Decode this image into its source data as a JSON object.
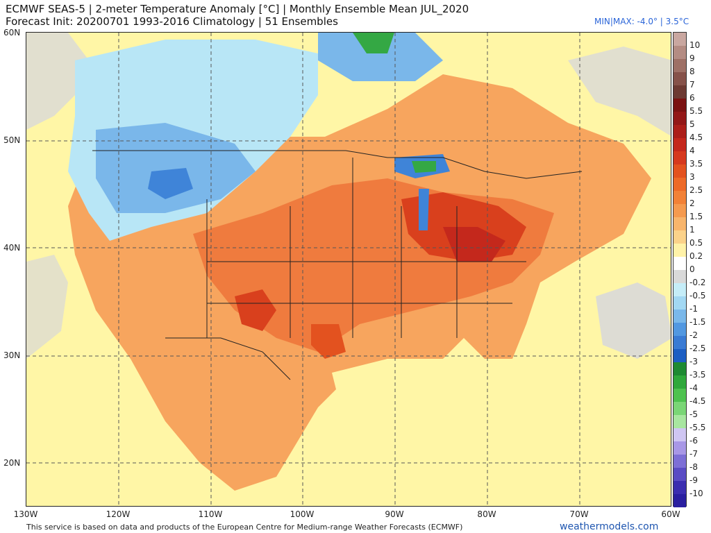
{
  "header": {
    "title_line1": "ECMWF SEAS-5 | 2-meter Temperature Anomaly [°C] | Monthly Ensemble Mean JUL_2020",
    "title_line2": "Forecast Init: 20200701     1993-2016 Climatology | 51 Ensembles",
    "minmax": "MIN|MAX: -4.0° | 3.5°C"
  },
  "map": {
    "lat_labels": [
      "60N",
      "50N",
      "40N",
      "30N",
      "20N"
    ],
    "lon_labels": [
      "130W",
      "120W",
      "110W",
      "100W",
      "90W",
      "80W",
      "70W",
      "60W"
    ],
    "extent": {
      "lon": [
        -130,
        -60
      ],
      "lat": [
        16,
        60
      ]
    },
    "colors": {
      "ocean_neutral": "#fff6a6",
      "land_warm": "#f7a55e",
      "warm_mid": "#ef7b3e",
      "warm_strong": "#d9401d",
      "cool_light": "#b8e6f6",
      "cool_mid": "#7ab7ea",
      "cool_strong": "#3f84d8",
      "green_anom": "#34a844",
      "neutral_grey": "#d9d9d9",
      "grid": "#555555",
      "border": "#222222"
    },
    "grid_style": "dashed"
  },
  "colorbar": {
    "labels": [
      "10",
      "9",
      "8",
      "7",
      "6",
      "5.5",
      "5",
      "4.5",
      "4",
      "3.5",
      "3",
      "2.5",
      "2",
      "1.5",
      "1",
      "0.5",
      "0.2",
      "0",
      "-0.2",
      "-0.5",
      "-1",
      "-1.5",
      "-2",
      "-2.5",
      "-3",
      "-3.5",
      "-4",
      "-4.5",
      "-5",
      "-5.5",
      "-6",
      "-7",
      "-8",
      "-9",
      "-10"
    ],
    "colors": [
      "#c9a7a0",
      "#b48c83",
      "#9e7066",
      "#86524a",
      "#6d3a33",
      "#7b1212",
      "#931818",
      "#ac1f1a",
      "#c4281c",
      "#d6391e",
      "#e3521f",
      "#ed6a28",
      "#f28137",
      "#f59a4f",
      "#f8b56c",
      "#fbd28a",
      "#fff2a8",
      "#ffffff",
      "#d9d9d9",
      "#c5edf8",
      "#a2d8f3",
      "#7ab8ea",
      "#5298e1",
      "#3a7bd4",
      "#1d5ec3",
      "#1e8a32",
      "#2fa83b",
      "#4ec24f",
      "#7ad676",
      "#a8e6a0",
      "#cfc6f2",
      "#a897e6",
      "#7d6fd6",
      "#5a4cc4",
      "#3b2eb0",
      "#2a1fa0"
    ]
  },
  "footer": {
    "note": "This service is based on data and products of the European Centre for Medium-range Weather Forecasts (ECMWF)",
    "brand": "weathermodels.com"
  }
}
